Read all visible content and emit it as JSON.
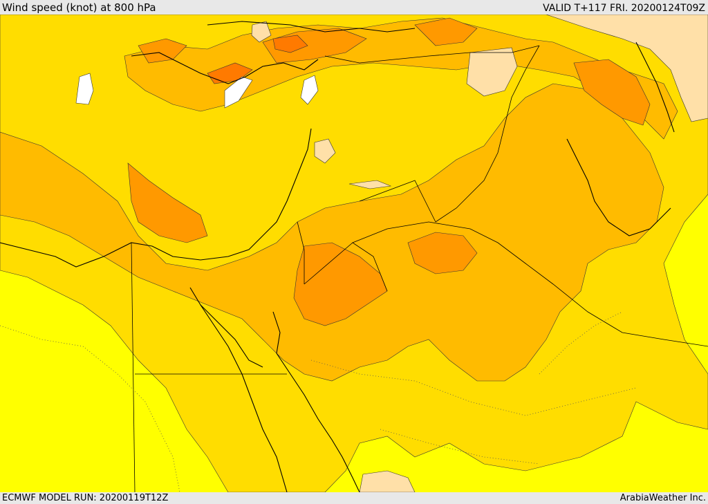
{
  "header": {
    "title": "Wind speed (knot) at 800 hPa",
    "valid": "VALID T+117 FRI. 20200124T09Z"
  },
  "footer": {
    "model_run": "ECMWF MODEL RUN: 20200119T12Z",
    "credit": "ArabiaWeather Inc."
  },
  "palette": {
    "lightest": "#ffff00",
    "light": "#ffdd00",
    "medium": "#ffbb00",
    "strong": "#ff9900",
    "stronger": "#ff7a00",
    "calm": "#ffe0a8",
    "calmest": "#ffffff",
    "boundary": "#000000"
  }
}
